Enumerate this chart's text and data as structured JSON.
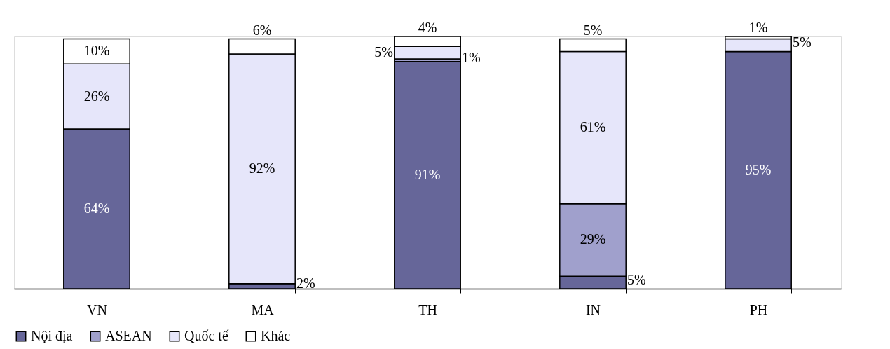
{
  "chart_data": {
    "type": "bar",
    "stacked": true,
    "categories": [
      "VN",
      "MA",
      "TH",
      "IN",
      "PH"
    ],
    "series": [
      {
        "name": "Nội địa",
        "color": "#666699",
        "values": [
          64,
          2,
          91,
          5,
          95
        ],
        "value_labels": [
          "64%",
          "2%",
          "91%",
          "5%",
          "95%"
        ]
      },
      {
        "name": "ASEAN",
        "color": "#a0a0cc",
        "values": [
          0,
          0,
          1,
          29,
          0
        ],
        "value_labels": [
          null,
          null,
          "1%",
          "29%",
          null
        ]
      },
      {
        "name": "Quốc tế",
        "color": "#e6e6fa",
        "values": [
          26,
          92,
          5,
          61,
          5
        ],
        "value_labels": [
          "26%",
          "92%",
          "5%",
          "61%",
          "5%"
        ]
      },
      {
        "name": "Khác",
        "color": "#ffffff",
        "values": [
          10,
          6,
          4,
          5,
          1
        ],
        "value_labels": [
          "10%",
          "6%",
          "4%",
          "5%",
          "1%"
        ]
      }
    ],
    "legend": "bottom",
    "tick_labels": "x"
  }
}
